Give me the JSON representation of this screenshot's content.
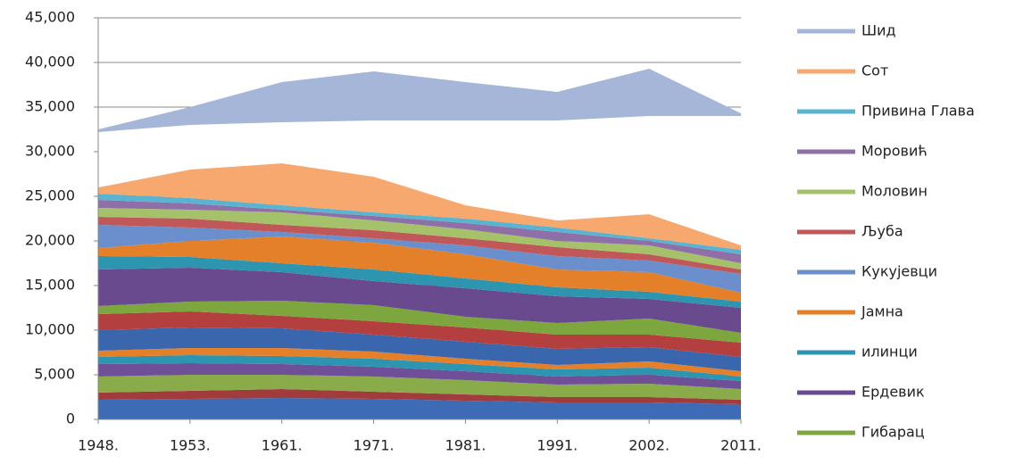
{
  "chart_data": {
    "type": "stacked_area",
    "categories": [
      "1948.",
      "1953.",
      "1961.",
      "1971.",
      "1981.",
      "1991.",
      "2002.",
      "2011."
    ],
    "ylim": [
      0,
      45000
    ],
    "yticks": [
      0,
      {
        "value": 5000,
        "label": "5,000"
      },
      {
        "value": 10000,
        "label": "10,000"
      },
      {
        "value": 15000,
        "label": "15,000"
      },
      {
        "value": 20000,
        "label": "20,000"
      },
      {
        "value": 25000,
        "label": "25,000"
      },
      {
        "value": 30000,
        "label": "30,000"
      },
      {
        "value": 35000,
        "label": "35,000"
      },
      {
        "value": 40000,
        "label": "40,000"
      },
      {
        "value": 45000,
        "label": "45,000"
      }
    ],
    "grid": true,
    "legend": "right",
    "series": [
      {
        "color": "#3d6bb5",
        "values": [
          2200,
          2300,
          2400,
          2300,
          2100,
          1900,
          1900,
          1700
        ]
      },
      {
        "color": "#a23b3b",
        "values": [
          800,
          900,
          1000,
          800,
          700,
          600,
          600,
          500
        ]
      },
      {
        "color": "#8aab4a",
        "values": [
          1800,
          1800,
          1600,
          1700,
          1600,
          1400,
          1500,
          1200
        ]
      },
      {
        "color": "#6f4f98",
        "values": [
          1400,
          1300,
          1200,
          1100,
          1000,
          900,
          1000,
          900
        ]
      },
      {
        "color": "#2e95b0",
        "values": [
          800,
          900,
          900,
          900,
          800,
          800,
          800,
          500
        ]
      },
      {
        "color": "#e47f2a",
        "values": [
          700,
          800,
          900,
          800,
          600,
          500,
          700,
          600
        ]
      },
      {
        "color": "#3a66ad",
        "values": [
          2300,
          2300,
          2200,
          1900,
          1900,
          1800,
          1600,
          1600
        ]
      },
      {
        "color": "#b3403f",
        "values": [
          1800,
          1800,
          1400,
          1500,
          1600,
          1600,
          1400,
          1600
        ]
      },
      {
        "name": "Гибарац",
        "color": "#7ea63f",
        "values": [
          900,
          1100,
          1700,
          1800,
          1200,
          1300,
          1800,
          1100
        ]
      },
      {
        "name": "Ердевик",
        "color": "#6a4a8e",
        "values": [
          4100,
          3800,
          3200,
          2700,
          3200,
          3000,
          2200,
          2800
        ]
      },
      {
        "name": "илинци",
        "color": "#2e95b0",
        "values": [
          1500,
          1200,
          1000,
          1300,
          1100,
          1000,
          800,
          700
        ]
      },
      {
        "name": "Јамна",
        "color": "#e47f2a",
        "values": [
          900,
          1800,
          3000,
          3000,
          2700,
          2000,
          2200,
          1000
        ]
      },
      {
        "name": "Кукујевци",
        "color": "#6a8fcc",
        "values": [
          2600,
          1500,
          500,
          500,
          1000,
          1500,
          1300,
          2100
        ]
      },
      {
        "name": "Љуба",
        "color": "#c0585a",
        "values": [
          900,
          1000,
          800,
          900,
          800,
          1000,
          700,
          500
        ]
      },
      {
        "name": "Моловин",
        "color": "#a5c26b",
        "values": [
          1000,
          1000,
          1400,
          1100,
          1000,
          700,
          1000,
          700
        ]
      },
      {
        "name": "Моровић",
        "color": "#8e6fa8",
        "values": [
          900,
          700,
          300,
          500,
          700,
          1000,
          500,
          1000
        ]
      },
      {
        "name": "Привина  Глава",
        "color": "#5bb4cf",
        "values": [
          700,
          600,
          500,
          400,
          500,
          500,
          300,
          500
        ]
      },
      {
        "name": "Сот",
        "color": "#f7a86f",
        "values": [
          700,
          3200,
          4700,
          4000,
          1500,
          800,
          2700,
          500
        ]
      },
      {
        "color": "#ffffff",
        "values": [
          6200,
          5000,
          4600,
          6300,
          9500,
          11200,
          11000,
          14500
        ]
      },
      {
        "name": "Шид",
        "color": "#a5b6d9",
        "values": [
          300,
          2000,
          4500,
          5500,
          4300,
          3200,
          5300,
          300
        ]
      }
    ]
  }
}
